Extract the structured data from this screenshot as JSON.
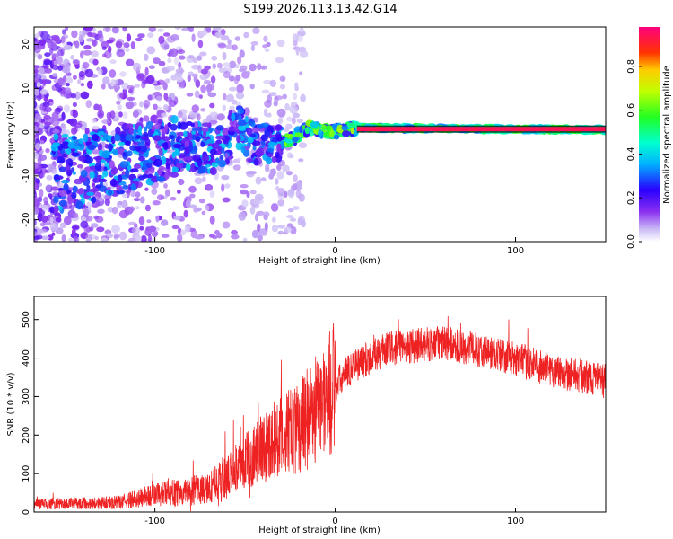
{
  "title": "S199.2026.113.13.42.G14",
  "chart_data": [
    {
      "type": "heatmap",
      "xlabel": "Height of straight line (km)",
      "ylabel": "Frequency (Hz)",
      "xlim": [
        -167,
        150
      ],
      "ylim": [
        -25,
        24
      ],
      "xticks": [
        "-100",
        "0",
        "100"
      ],
      "yticks": [
        "-20",
        "-10",
        "0",
        "10",
        "20"
      ],
      "colorbar": {
        "label": "Normalized spectral amplitude",
        "range": [
          0.0,
          0.98
        ],
        "ticks": [
          "0.0",
          "0.2",
          "0.4",
          "0.6",
          "0.8"
        ]
      },
      "ridge_frequency_hz": [
        {
          "x": -150,
          "y": -9
        },
        {
          "x": -115,
          "y": -6
        },
        {
          "x": -85,
          "y": -3
        },
        {
          "x": -62,
          "y": -4
        },
        {
          "x": -55,
          "y": 2
        },
        {
          "x": -45,
          "y": -3
        },
        {
          "x": -25,
          "y": -2
        },
        {
          "x": -15,
          "y": 1
        },
        {
          "x": 0,
          "y": 0
        },
        {
          "x": 12,
          "y": 1
        },
        {
          "x": 150,
          "y": 0.5
        }
      ]
    },
    {
      "type": "line",
      "xlabel": "Height of straight line (km)",
      "ylabel": "SNR (10 * v/v)",
      "xlim": [
        -167,
        150
      ],
      "ylim": [
        0,
        560
      ],
      "xticks": [
        "-100",
        "0",
        "100"
      ],
      "yticks": [
        "0",
        "100",
        "200",
        "300",
        "400",
        "500"
      ],
      "series": [
        {
          "name": "SNR",
          "color": "#ee2222",
          "envelope": [
            {
              "x": -167,
              "y": 20
            },
            {
              "x": -120,
              "y": 25
            },
            {
              "x": -100,
              "y": 45
            },
            {
              "x": -70,
              "y": 60
            },
            {
              "x": -55,
              "y": 110
            },
            {
              "x": -40,
              "y": 170
            },
            {
              "x": -20,
              "y": 220
            },
            {
              "x": -5,
              "y": 300
            },
            {
              "x": 10,
              "y": 380
            },
            {
              "x": 30,
              "y": 425
            },
            {
              "x": 60,
              "y": 440
            },
            {
              "x": 90,
              "y": 410
            },
            {
              "x": 120,
              "y": 370
            },
            {
              "x": 150,
              "y": 340
            }
          ]
        }
      ]
    }
  ]
}
